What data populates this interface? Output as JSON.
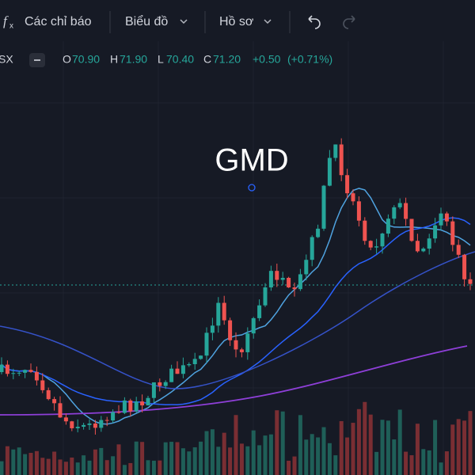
{
  "toolbar": {
    "indicators": "Các chỉ báo",
    "chart": "Biểu đồ",
    "profile": "Hồ sơ"
  },
  "legend": {
    "symbol": "SX",
    "open_label": "O",
    "open": "70.90",
    "high_label": "H",
    "high": "71.90",
    "low_label": "L",
    "low": "70.40",
    "close_label": "C",
    "close": "71.20",
    "change": "+0.50",
    "change_pct": "(+0.71%)"
  },
  "title": "GMD"
}
